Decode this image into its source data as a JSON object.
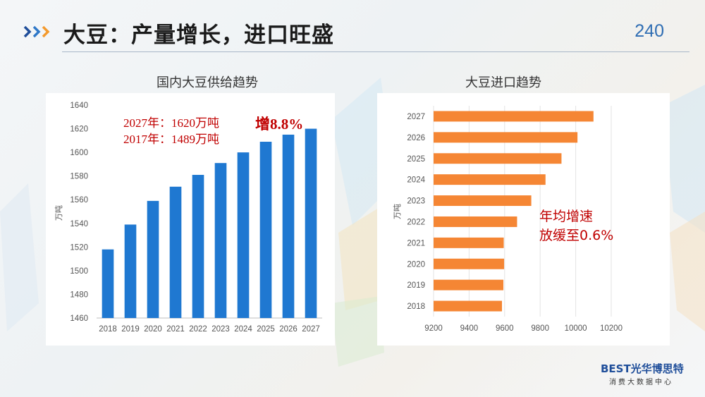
{
  "header": {
    "title": "大豆：产量增长，进口旺盛",
    "page_number": "240"
  },
  "left_chart": {
    "title": "国内大豆供给趋势",
    "annotation_line1": "2027年：1620万吨",
    "annotation_line2": "2017年：1489万吨",
    "annotation_growth": "增8.8%"
  },
  "right_chart": {
    "title": "大豆进口趋势",
    "annotation_line1": "年均增速",
    "annotation_line2": "放缓至0.6%"
  },
  "logo": {
    "brand": "BEST光华博思特",
    "subtitle": "消费大数据中心"
  },
  "colors": {
    "bar_blue": "#1f78d1",
    "bar_orange": "#f58634",
    "accent_red": "#c00000",
    "page_number_blue": "#2f6db3"
  },
  "chart_data": [
    {
      "type": "bar",
      "orientation": "vertical",
      "title": "国内大豆供给趋势",
      "ylabel": "万吨",
      "categories": [
        "2018",
        "2019",
        "2020",
        "2021",
        "2022",
        "2023",
        "2024",
        "2025",
        "2026",
        "2027"
      ],
      "values": [
        1518,
        1539,
        1559,
        1571,
        1581,
        1591,
        1600,
        1609,
        1615,
        1620
      ],
      "yticks": [
        "1460",
        "1480",
        "1500",
        "1520",
        "1540",
        "1560",
        "1580",
        "1600",
        "1620",
        "1640"
      ],
      "ylim": [
        1460,
        1640
      ],
      "grid": false
    },
    {
      "type": "bar",
      "orientation": "horizontal",
      "title": "大豆进口趋势",
      "ylabel": "万吨",
      "categories": [
        "2027",
        "2026",
        "2025",
        "2024",
        "2023",
        "2022",
        "2021",
        "2020",
        "2019",
        "2018"
      ],
      "values": [
        10100,
        10010,
        9920,
        9830,
        9750,
        9670,
        9595,
        9597,
        9593,
        9585
      ],
      "xticks": [
        "9200",
        "9400",
        "9600",
        "9800",
        "10000",
        "10200"
      ],
      "xlim": [
        9200,
        10200
      ],
      "grid": true
    }
  ]
}
